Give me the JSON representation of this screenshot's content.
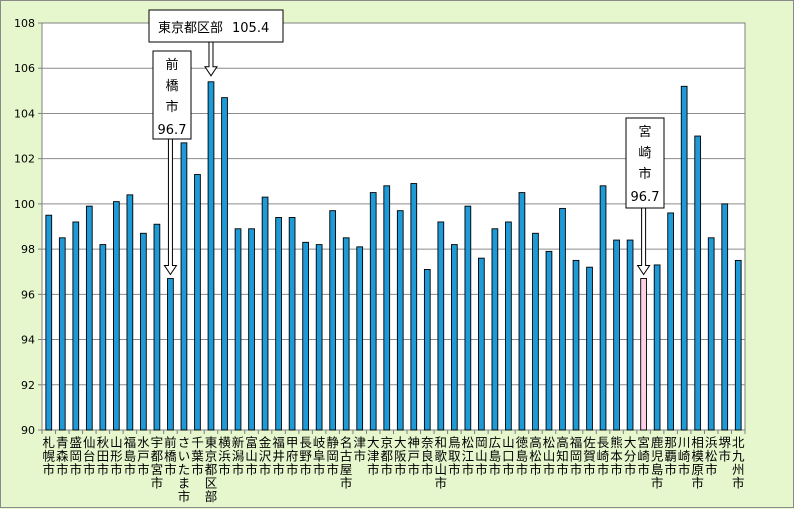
{
  "chart_data": {
    "type": "bar",
    "title": "",
    "xlabel": "",
    "ylabel": "",
    "ylim": [
      90,
      108
    ],
    "yticks": [
      90,
      92,
      94,
      96,
      98,
      100,
      102,
      104,
      106,
      108
    ],
    "grid": true,
    "categories": [
      "札幌市",
      "青森市",
      "盛岡市",
      "仙台市",
      "秋田市",
      "山形市",
      "福島市",
      "水戸市",
      "宇都宮市",
      "前橋市",
      "さいたま市",
      "千葉市",
      "東京都区部",
      "横浜市",
      "新潟市",
      "富山市",
      "金沢市",
      "福井市",
      "甲府市",
      "長野市",
      "岐阜市",
      "静岡市",
      "名古屋市",
      "津市",
      "大津市",
      "京都市",
      "大阪市",
      "神戸市",
      "奈良市",
      "和歌山市",
      "鳥取市",
      "松江市",
      "岡山市",
      "広島市",
      "山口市",
      "徳島市",
      "高松市",
      "松山市",
      "高知市",
      "福岡市",
      "佐賀市",
      "長崎市",
      "熊本市",
      "大分市",
      "宮崎市",
      "鹿児島市",
      "那覇市",
      "川崎市",
      "相模原市",
      "浜松市",
      "堺市",
      "北九州市"
    ],
    "values": [
      99.5,
      98.5,
      99.2,
      99.9,
      98.2,
      100.1,
      100.4,
      98.7,
      99.1,
      96.7,
      102.7,
      101.3,
      105.4,
      104.7,
      98.9,
      98.9,
      100.3,
      99.4,
      99.4,
      98.3,
      98.2,
      99.7,
      98.5,
      98.1,
      100.5,
      100.8,
      99.7,
      100.9,
      97.1,
      99.2,
      98.2,
      99.9,
      97.6,
      98.9,
      99.2,
      100.5,
      98.7,
      97.9,
      99.8,
      97.5,
      97.2,
      100.8,
      98.4,
      98.4,
      96.7,
      97.3,
      99.6,
      105.2,
      103.0,
      98.5,
      100.0,
      97.5
    ],
    "bar_color": "#1e9ad6",
    "highlight_index": 44,
    "highlight_color": "#ffd0e8",
    "annotations": [
      {
        "label": "東京都区部",
        "value_text": "105.4",
        "target_index": 12
      },
      {
        "label": "前橋市",
        "value_text": "96.7",
        "target_index": 9
      },
      {
        "label": "宮崎市",
        "value_text": "96.7",
        "target_index": 44
      }
    ]
  }
}
